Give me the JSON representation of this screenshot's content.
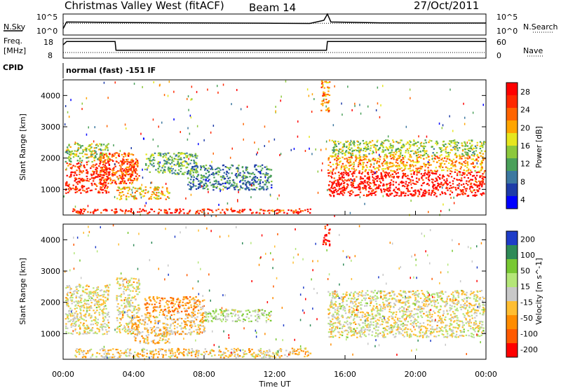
{
  "header": {
    "station": "Christmas Valley West (fitACF)",
    "beam": "Beam 14",
    "date": "27/Oct/2011"
  },
  "noise_panel": {
    "left_label": "N.Sky",
    "left_ticks": [
      "10^5",
      "10^0"
    ],
    "right_label": "N.Search",
    "right_ticks": [
      "10^5",
      "10^0"
    ]
  },
  "freq_panel": {
    "left_label_1": "Freq.",
    "left_label_2": "[MHz]",
    "left_ticks": [
      "18",
      "8"
    ],
    "right_label": "Nave",
    "right_ticks": [
      "60",
      "0"
    ]
  },
  "cpid": {
    "label": "CPID",
    "value": "normal (fast) -151 IF"
  },
  "x_axis": {
    "label": "Time UT",
    "ticks": [
      "00:00",
      "04:00",
      "08:00",
      "12:00",
      "16:00",
      "20:00",
      "00:00"
    ]
  },
  "power_panel": {
    "ylabel": "Slant Range [km]",
    "yticks": [
      "1000",
      "2000",
      "3000",
      "4000"
    ],
    "colorbar_label": "Power [dB]",
    "colorbar_ticks": [
      "28",
      "24",
      "20",
      "16",
      "12",
      "8",
      "4"
    ],
    "colors": [
      "#0000ff",
      "#1e3ca8",
      "#3c78a0",
      "#4aa05a",
      "#8cc83c",
      "#e6e61e",
      "#ffa500",
      "#ff6400",
      "#ff2800",
      "#ff0000"
    ]
  },
  "velocity_panel": {
    "ylabel": "Slant Range [km]",
    "yticks": [
      "1000",
      "2000",
      "3000",
      "4000"
    ],
    "colorbar_label": "Velocity [m s^-1]",
    "colorbar_ticks": [
      "200",
      "100",
      "50",
      "15",
      "-15",
      "-50",
      "-100",
      "-200"
    ],
    "colors": [
      "#1e3cc8",
      "#2e8a57",
      "#78c832",
      "#b4e678",
      "#c8c8c8",
      "#ffbe32",
      "#ff8c00",
      "#ff5a00",
      "#ff0000"
    ]
  },
  "chart_data": [
    {
      "type": "line",
      "name": "noise",
      "x_hours": [
        0,
        0.2,
        3.0,
        6.0,
        9.0,
        12.0,
        14.0,
        14.8,
        15.0,
        15.2,
        18.0,
        21.0,
        24.0
      ],
      "values": [
        0.3,
        0.62,
        0.6,
        0.58,
        0.57,
        0.56,
        0.55,
        0.7,
        1.0,
        0.62,
        0.58,
        0.57,
        0.57
      ]
    },
    {
      "type": "line",
      "name": "frequency",
      "x_hours": [
        0,
        0.2,
        2.95,
        3.0,
        14.95,
        15.0,
        24.0
      ],
      "values": [
        14.8,
        16.5,
        16.5,
        12.0,
        12.0,
        16.5,
        16.5
      ],
      "ylim": [
        8,
        18
      ]
    },
    {
      "type": "heatmap",
      "name": "power",
      "xlim_hours": [
        0,
        24
      ],
      "ylim_km": [
        180,
        4500
      ],
      "clim_db": [
        0,
        30
      ],
      "regions": [
        {
          "t": [
            0.1,
            2.6
          ],
          "r": [
            900,
            1900
          ],
          "v": 26
        },
        {
          "t": [
            0.1,
            2.6
          ],
          "r": [
            1900,
            2500
          ],
          "v": 14
        },
        {
          "t": [
            2.0,
            4.0
          ],
          "r": [
            1200,
            2200
          ],
          "v": 24
        },
        {
          "t": [
            3.2,
            4.3
          ],
          "r": [
            1300,
            2000
          ],
          "v": 24
        },
        {
          "t": [
            3.0,
            6.0
          ],
          "r": [
            700,
            1100
          ],
          "v": 18
        },
        {
          "t": [
            4.6,
            7.6
          ],
          "r": [
            1500,
            2200
          ],
          "v": 12
        },
        {
          "t": [
            7.0,
            11.8
          ],
          "r": [
            1000,
            1800
          ],
          "v": 8
        },
        {
          "t": [
            0.5,
            14.0
          ],
          "r": [
            250,
            400
          ],
          "v": 26
        },
        {
          "t": [
            14.6,
            15.1
          ],
          "r": [
            3500,
            4500
          ],
          "v": 20
        },
        {
          "t": [
            15.0,
            23.9
          ],
          "r": [
            800,
            1600
          ],
          "v": 28
        },
        {
          "t": [
            15.0,
            23.9
          ],
          "r": [
            1600,
            2100
          ],
          "v": 20
        },
        {
          "t": [
            15.2,
            23.9
          ],
          "r": [
            2100,
            2600
          ],
          "v": 14
        }
      ]
    },
    {
      "type": "heatmap",
      "name": "velocity",
      "xlim_hours": [
        0,
        24
      ],
      "ylim_km": [
        180,
        4500
      ],
      "clim_ms": [
        -200,
        200
      ],
      "regions": [
        {
          "t": [
            0.1,
            2.6
          ],
          "r": [
            1000,
            2600
          ],
          "v": 0
        },
        {
          "t": [
            3.0,
            4.3
          ],
          "r": [
            1000,
            2800
          ],
          "v": 0
        },
        {
          "t": [
            4.6,
            8.0
          ],
          "r": [
            1600,
            2200
          ],
          "v": -80
        },
        {
          "t": [
            3.8,
            8.0
          ],
          "r": [
            1000,
            1600
          ],
          "v": -40
        },
        {
          "t": [
            4.0,
            6.0
          ],
          "r": [
            700,
            1000
          ],
          "v": -30
        },
        {
          "t": [
            8.0,
            11.8
          ],
          "r": [
            1400,
            1800
          ],
          "v": 40
        },
        {
          "t": [
            0.5,
            14.0
          ],
          "r": [
            250,
            550
          ],
          "v": -30
        },
        {
          "t": [
            14.7,
            15.1
          ],
          "r": [
            3800,
            4500
          ],
          "v": -180
        },
        {
          "t": [
            15.0,
            23.9
          ],
          "r": [
            900,
            2400
          ],
          "v": 0
        }
      ]
    }
  ]
}
